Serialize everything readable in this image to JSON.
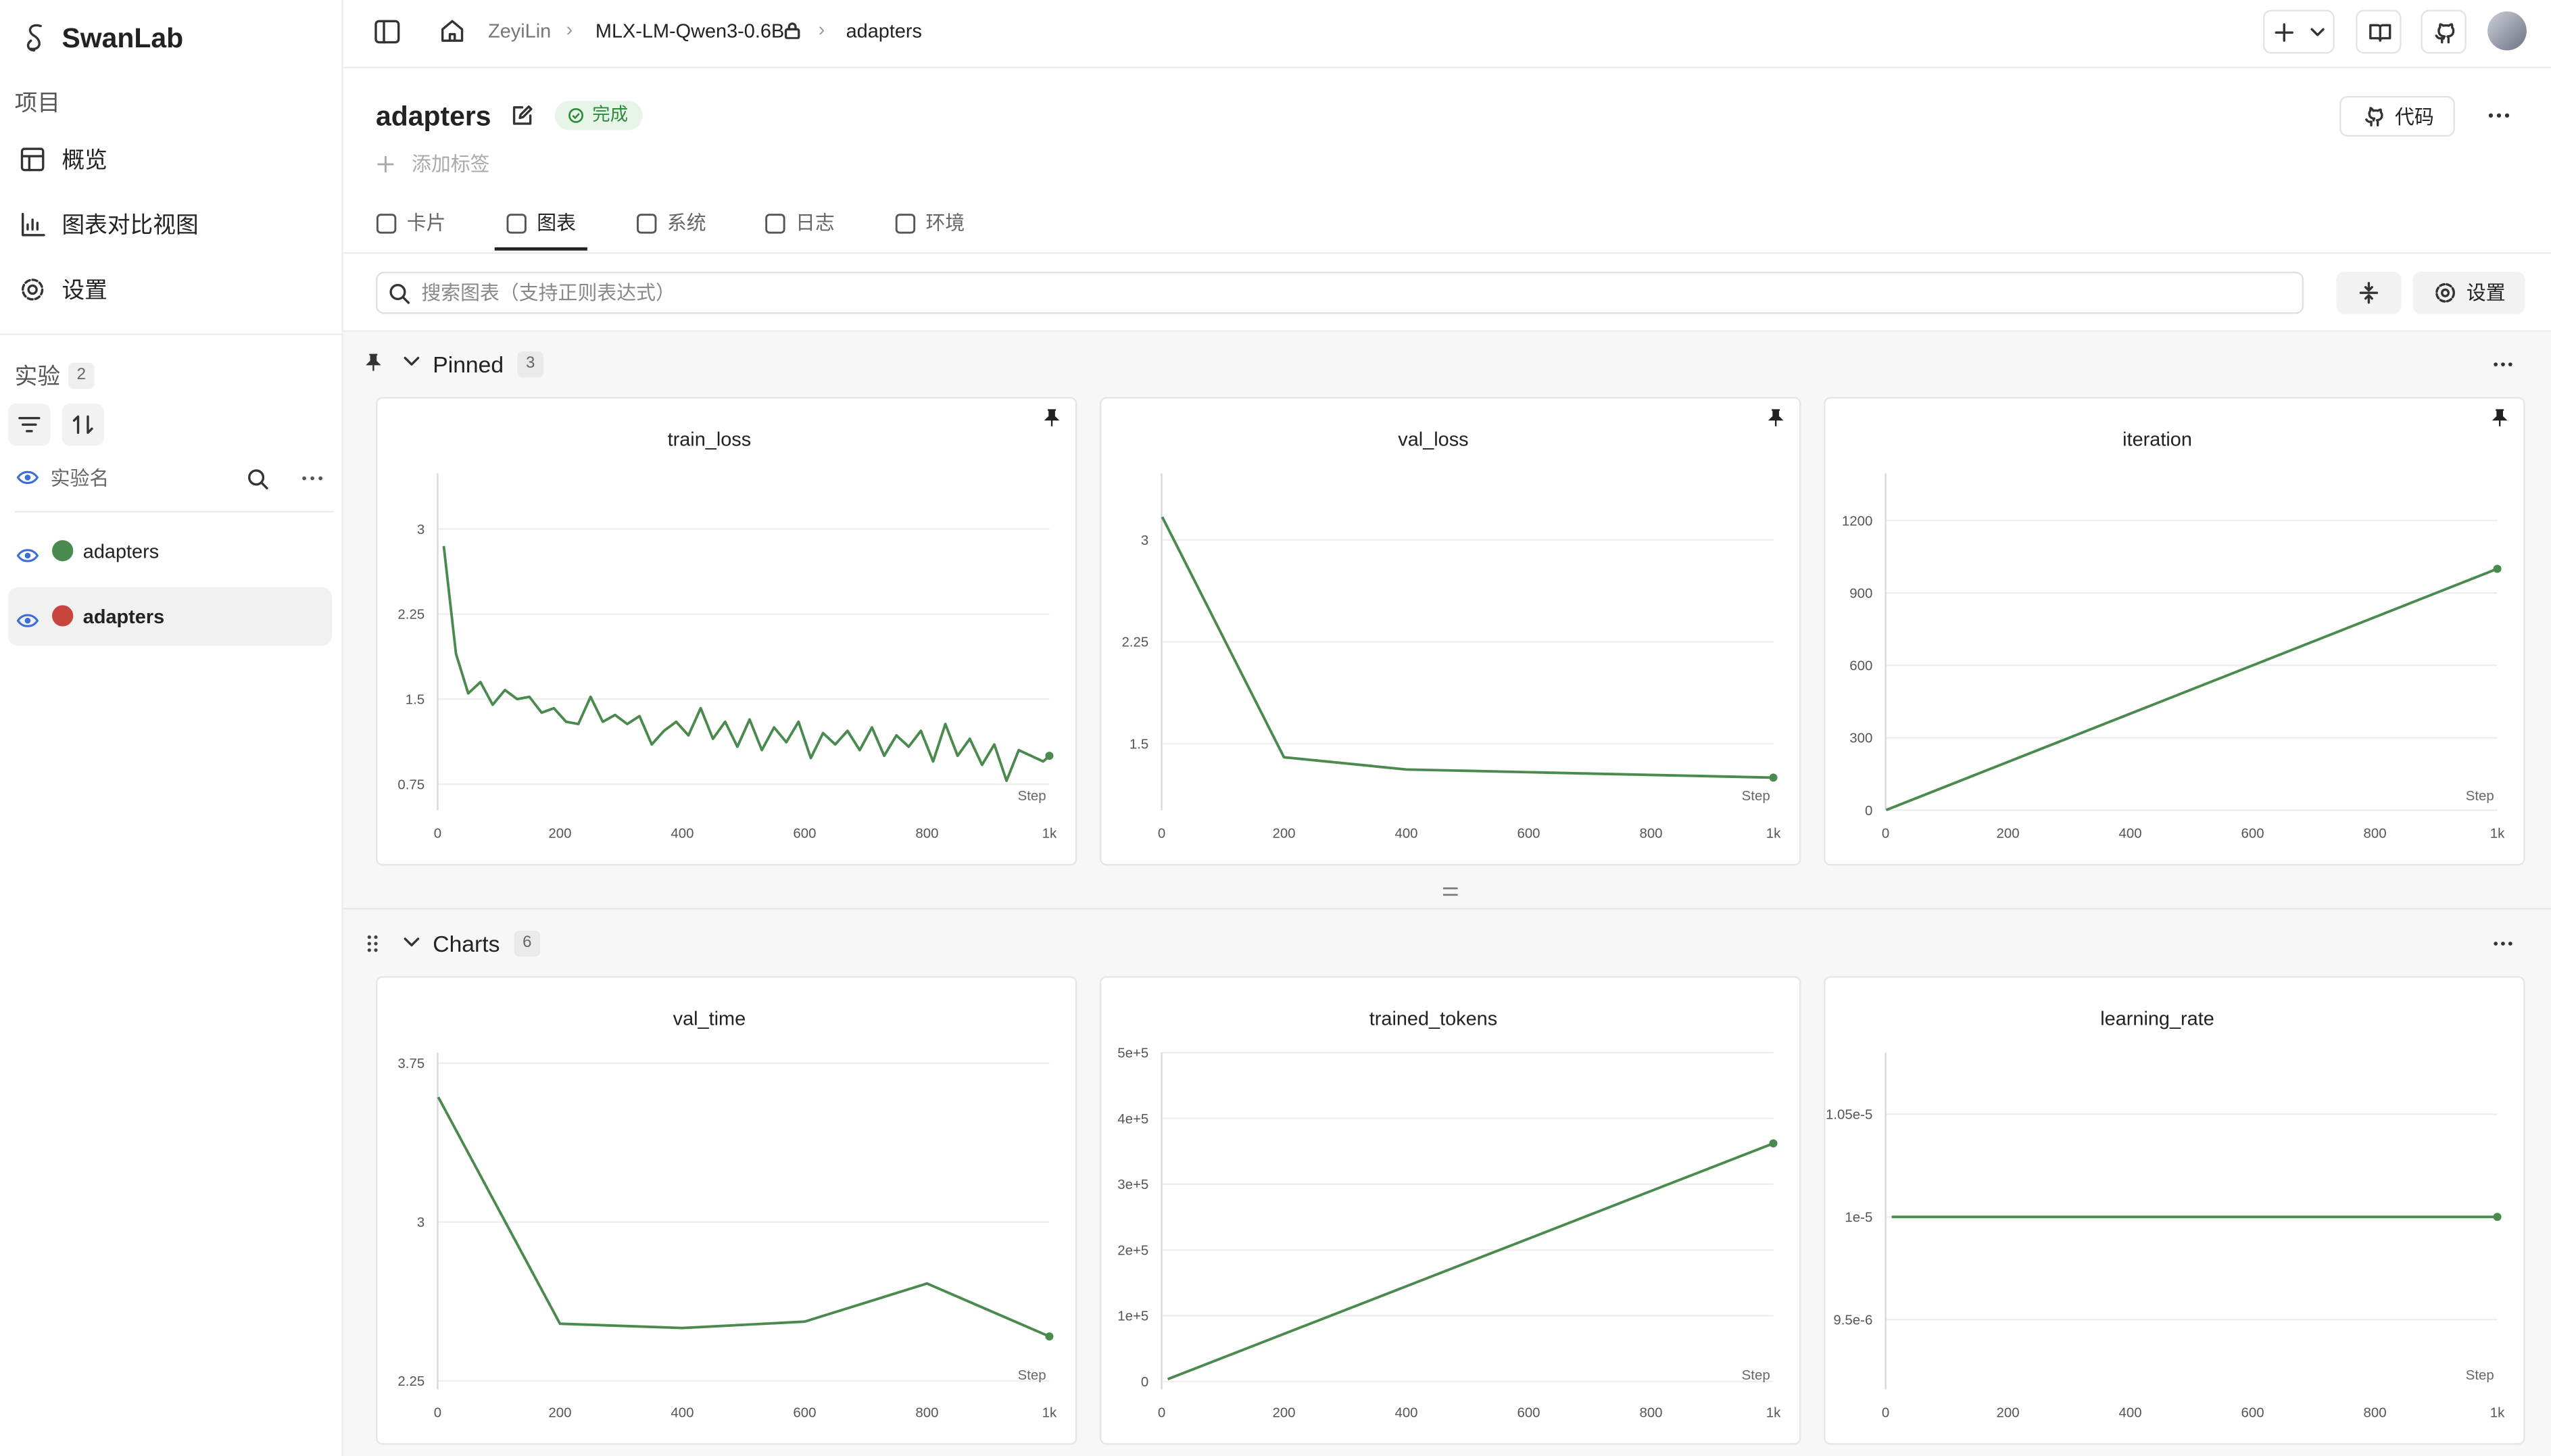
{
  "sidebar": {
    "brand": "SwanLab",
    "project_label": "项目",
    "nav": [
      "概览",
      "图表对比视图",
      "设置"
    ],
    "experiments_label": "实验",
    "experiments_count": 2,
    "column_label": "实验名",
    "experiments": [
      {
        "name": "adapters",
        "color": "#4c8b50"
      },
      {
        "name": "adapters",
        "color": "#c8453d"
      }
    ]
  },
  "breadcrumb": [
    "ZeyiLin",
    "MLX-LM-Qwen3-0.6B",
    "adapters"
  ],
  "header": {
    "title": "adapters",
    "status": "完成",
    "add_tag": "添加标签",
    "code_button": "代码"
  },
  "tabs": [
    "卡片",
    "图表",
    "系统",
    "日志",
    "环境"
  ],
  "search": {
    "placeholder": "搜索图表（支持正则表达式）",
    "settings_button": "设置"
  },
  "sections": [
    {
      "name": "Pinned",
      "count": 3
    },
    {
      "name": "Charts",
      "count": 6
    }
  ],
  "chart_data": [
    {
      "type": "line",
      "title": "train_loss",
      "xlabel": "Step",
      "pinned": true,
      "grid": true,
      "color": "#4a8a4f",
      "x": [
        10,
        30,
        50,
        70,
        90,
        110,
        130,
        150,
        170,
        190,
        210,
        230,
        250,
        270,
        290,
        310,
        330,
        350,
        370,
        390,
        410,
        430,
        450,
        470,
        490,
        510,
        530,
        550,
        570,
        590,
        610,
        630,
        650,
        670,
        690,
        710,
        730,
        750,
        770,
        790,
        810,
        830,
        850,
        870,
        890,
        910,
        930,
        950,
        970,
        990,
        1000
      ],
      "values": [
        2.85,
        1.9,
        1.55,
        1.65,
        1.45,
        1.58,
        1.5,
        1.52,
        1.38,
        1.42,
        1.3,
        1.28,
        1.52,
        1.3,
        1.36,
        1.28,
        1.35,
        1.1,
        1.22,
        1.3,
        1.18,
        1.42,
        1.15,
        1.3,
        1.08,
        1.32,
        1.05,
        1.25,
        1.12,
        1.3,
        0.98,
        1.2,
        1.1,
        1.22,
        1.05,
        1.25,
        1.0,
        1.18,
        1.08,
        1.22,
        0.95,
        1.28,
        1.0,
        1.15,
        0.92,
        1.1,
        0.78,
        1.05,
        1.0,
        0.95,
        1.0
      ],
      "xlim": [
        0,
        1000
      ],
      "ylim": [
        0.52,
        3.49
      ],
      "xticks": [
        0,
        200,
        400,
        600,
        800,
        {
          "value": 1000,
          "label": "1k"
        }
      ],
      "yticks": [
        0.75,
        1.5,
        2.25,
        3
      ]
    },
    {
      "type": "line",
      "title": "val_loss",
      "xlabel": "Step",
      "pinned": true,
      "grid": true,
      "color": "#4a8a4f",
      "x": [
        1,
        200,
        400,
        600,
        800,
        1000
      ],
      "values": [
        3.17,
        1.4,
        1.31,
        1.29,
        1.27,
        1.25
      ],
      "xlim": [
        0,
        1000
      ],
      "ylim": [
        1.01,
        3.49
      ],
      "xticks": [
        0,
        200,
        400,
        600,
        800,
        {
          "value": 1000,
          "label": "1k"
        }
      ],
      "yticks": [
        1.5,
        2.25,
        3
      ]
    },
    {
      "type": "line",
      "title": "iteration",
      "xlabel": "Step",
      "pinned": true,
      "grid": true,
      "color": "#4a8a4f",
      "x": [
        1,
        1000
      ],
      "values": [
        1,
        1000
      ],
      "xlim": [
        0,
        1000
      ],
      "ylim": [
        0,
        1395
      ],
      "xticks": [
        0,
        200,
        400,
        600,
        800,
        {
          "value": 1000,
          "label": "1k"
        }
      ],
      "yticks": [
        0,
        300,
        600,
        900,
        1200
      ]
    },
    {
      "type": "line",
      "title": "val_time",
      "xlabel": "Step",
      "pinned": false,
      "grid": true,
      "color": "#4a8a4f",
      "x": [
        1,
        200,
        400,
        600,
        800,
        1000
      ],
      "values": [
        3.59,
        2.52,
        2.5,
        2.53,
        2.71,
        2.46
      ],
      "xlim": [
        0,
        1000
      ],
      "ylim": [
        2.21,
        3.8
      ],
      "xticks": [
        0,
        200,
        400,
        600,
        800,
        {
          "value": 1000,
          "label": "1k"
        }
      ],
      "yticks": [
        2.25,
        3,
        3.75
      ]
    },
    {
      "type": "line",
      "title": "trained_tokens",
      "xlabel": "Step",
      "pinned": false,
      "grid": true,
      "color": "#4a8a4f",
      "x": [
        10,
        1000
      ],
      "values": [
        3600,
        362000
      ],
      "xlim": [
        0,
        1000
      ],
      "ylim": [
        -12000,
        500000
      ],
      "xticks": [
        0,
        200,
        400,
        600,
        800,
        {
          "value": 1000,
          "label": "1k"
        }
      ],
      "yticks": [
        0,
        {
          "value": 100000,
          "label": "1e+5"
        },
        {
          "value": 200000,
          "label": "2e+5"
        },
        {
          "value": 300000,
          "label": "3e+5"
        },
        {
          "value": 400000,
          "label": "4e+5"
        },
        {
          "value": 500000,
          "label": "5e+5"
        }
      ]
    },
    {
      "type": "line",
      "title": "learning_rate",
      "xlabel": "Step",
      "pinned": false,
      "grid": true,
      "color": "#4a8a4f",
      "x": [
        10,
        1000
      ],
      "values": [
        1e-05,
        1e-05
      ],
      "xlim": [
        0,
        1000
      ],
      "ylim": [
        9.16e-06,
        1.08e-05
      ],
      "xticks": [
        0,
        200,
        400,
        600,
        800,
        {
          "value": 1000,
          "label": "1k"
        }
      ],
      "yticks": [
        {
          "value": 9.5e-06,
          "label": "9.5e-6"
        },
        {
          "value": 1e-05,
          "label": "1e-5"
        },
        {
          "value": 1.05e-05,
          "label": "1.05e-5"
        }
      ]
    }
  ]
}
